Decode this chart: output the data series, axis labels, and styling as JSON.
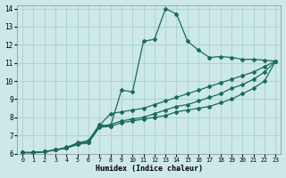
{
  "xlabel": "Humidex (Indice chaleur)",
  "bg_color": "#cce8e8",
  "grid_color": "#aacfcf",
  "line_color": "#1a6b5a",
  "xlim": [
    -0.5,
    23.5
  ],
  "ylim": [
    6,
    14.2
  ],
  "xticks": [
    0,
    1,
    2,
    3,
    4,
    5,
    6,
    7,
    8,
    9,
    10,
    11,
    12,
    13,
    14,
    15,
    16,
    17,
    18,
    19,
    20,
    21,
    22,
    23
  ],
  "yticks": [
    6,
    7,
    8,
    9,
    10,
    11,
    12,
    13,
    14
  ],
  "line1_x": [
    0,
    1,
    2,
    3,
    4,
    5,
    6,
    7,
    8,
    9,
    10,
    11,
    12,
    13,
    14,
    15,
    16,
    17,
    18,
    19,
    20,
    21,
    22,
    23
  ],
  "line1_y": [
    6.05,
    6.05,
    6.1,
    6.2,
    6.3,
    6.6,
    6.7,
    7.6,
    7.5,
    9.5,
    9.4,
    12.2,
    12.3,
    14.0,
    13.7,
    12.2,
    11.7,
    11.3,
    11.35,
    11.3,
    11.2,
    11.2,
    11.15,
    11.1
  ],
  "line2_x": [
    0,
    1,
    2,
    3,
    4,
    5,
    6,
    7,
    8,
    9,
    10,
    11,
    12,
    13,
    14,
    15,
    16,
    17,
    18,
    19,
    20,
    21,
    22,
    23
  ],
  "line2_y": [
    6.05,
    6.05,
    6.1,
    6.2,
    6.35,
    6.55,
    6.7,
    7.55,
    8.2,
    8.3,
    8.4,
    8.5,
    8.7,
    8.9,
    9.1,
    9.3,
    9.5,
    9.7,
    9.9,
    10.1,
    10.3,
    10.5,
    10.8,
    11.1
  ],
  "line3_x": [
    0,
    1,
    2,
    3,
    4,
    5,
    6,
    7,
    8,
    9,
    10,
    11,
    12,
    13,
    14,
    15,
    16,
    17,
    18,
    19,
    20,
    21,
    22,
    23
  ],
  "line3_y": [
    6.05,
    6.05,
    6.1,
    6.2,
    6.3,
    6.5,
    6.6,
    7.5,
    7.6,
    7.8,
    7.9,
    8.0,
    8.2,
    8.4,
    8.6,
    8.7,
    8.9,
    9.1,
    9.3,
    9.6,
    9.8,
    10.1,
    10.5,
    11.1
  ],
  "line4_x": [
    0,
    1,
    2,
    3,
    4,
    5,
    6,
    7,
    8,
    9,
    10,
    11,
    12,
    13,
    14,
    15,
    16,
    17,
    18,
    19,
    20,
    21,
    22,
    23
  ],
  "line4_y": [
    6.05,
    6.05,
    6.1,
    6.2,
    6.3,
    6.5,
    6.6,
    7.45,
    7.5,
    7.7,
    7.8,
    7.9,
    8.0,
    8.1,
    8.3,
    8.4,
    8.5,
    8.6,
    8.8,
    9.0,
    9.3,
    9.6,
    10.0,
    11.1
  ]
}
